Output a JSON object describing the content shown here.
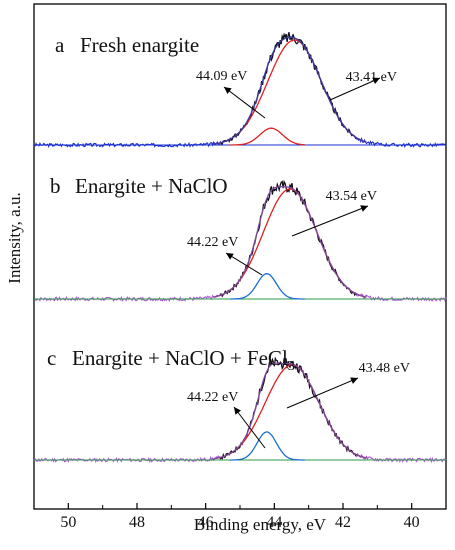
{
  "chart_data": {
    "type": "line",
    "xlabel": "Binding energy, eV",
    "ylabel": "Intensity, a.u.",
    "xlim": [
      51,
      39
    ],
    "x_reversed": true,
    "xticks": [
      "50",
      "48",
      "46",
      "44",
      "42",
      "40"
    ],
    "yticks_shown": false,
    "grid": false,
    "colors": {
      "raw": "#111111",
      "envelope": "#3a3aa8",
      "fit_main": "#e02020",
      "fit_minor": "#1a6fd0",
      "baseline_a": "#1a2fd0",
      "baseline": "#2a9a4a",
      "noise": "#b05ad8"
    },
    "panels": [
      {
        "letter": "a",
        "title": "Fresh enargite",
        "title_sub": "",
        "baseline": 0,
        "peaks": [
          {
            "label": "43.41 eV",
            "center": 43.41,
            "height": 100,
            "width": 0.78
          },
          {
            "label": "44.09 eV",
            "center": 44.09,
            "height": 16,
            "width": 0.33
          }
        ]
      },
      {
        "letter": "b",
        "title": "Enargite + NaClO",
        "title_sub": "",
        "baseline": 0,
        "peaks": [
          {
            "label": "43.54 eV",
            "center": 43.54,
            "height": 100,
            "width": 0.78
          },
          {
            "label": "44.22 eV",
            "center": 44.22,
            "height": 23,
            "width": 0.28
          }
        ]
      },
      {
        "letter": "c",
        "title": "Enargite + NaClO + FeCl",
        "title_sub": "3",
        "baseline": 0,
        "peaks": [
          {
            "label": "43.48 eV",
            "center": 43.48,
            "height": 88,
            "width": 0.78
          },
          {
            "label": "44.22 eV",
            "center": 44.22,
            "height": 26,
            "width": 0.28
          }
        ]
      }
    ]
  }
}
